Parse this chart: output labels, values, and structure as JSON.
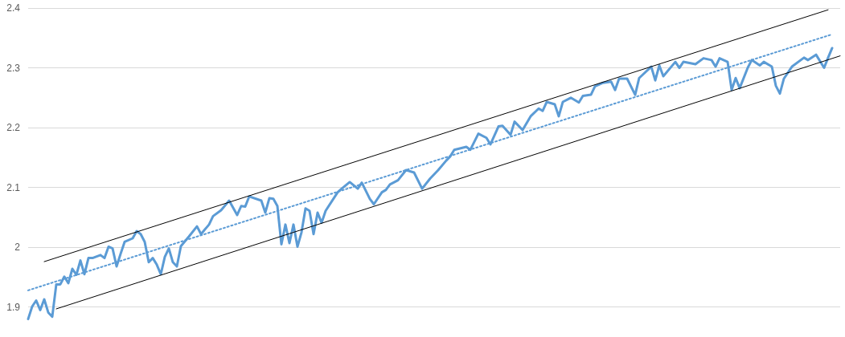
{
  "chart_data": {
    "type": "line",
    "tick_labels": "y",
    "grid": "y",
    "ylim": [
      1.85,
      2.4
    ],
    "yticks": [
      1.9,
      2,
      2.1,
      2.2,
      2.3,
      2.4
    ],
    "categories": [
      null,
      null,
      null,
      null,
      null,
      null,
      null,
      null,
      null,
      null,
      null,
      null,
      null,
      null,
      null,
      null,
      null,
      null,
      null,
      null,
      null,
      null,
      null,
      null,
      null,
      null,
      null,
      null,
      null,
      null,
      null,
      null,
      null,
      null,
      null,
      null,
      null,
      null,
      null,
      null,
      null,
      null,
      null,
      null,
      null,
      null,
      null,
      null,
      null,
      null,
      null,
      null,
      null,
      null,
      null,
      null,
      null,
      null,
      null,
      null,
      null,
      null,
      null,
      null,
      null,
      null,
      null,
      null,
      null,
      null,
      null,
      null,
      null,
      null,
      null,
      null,
      null,
      null,
      null,
      null,
      null,
      null,
      null,
      null,
      null,
      null,
      null,
      null,
      null,
      null,
      null,
      null,
      null,
      null,
      null,
      null,
      null,
      null,
      null,
      null,
      null,
      null,
      null,
      null,
      null,
      null,
      null,
      null,
      null,
      null,
      null,
      null,
      null,
      null,
      null,
      null,
      null,
      null,
      null,
      null,
      null,
      null,
      null,
      null,
      null,
      null,
      null,
      null,
      null,
      null,
      null,
      null,
      null,
      null,
      null,
      null,
      null,
      null,
      null,
      null,
      null,
      null,
      null,
      null,
      null,
      null,
      null,
      null,
      null,
      null,
      null,
      null,
      null,
      null,
      null,
      null,
      null,
      null,
      null,
      null,
      null,
      null,
      null,
      null,
      null,
      null,
      null,
      null,
      null,
      null,
      null,
      null,
      null,
      null,
      null,
      null,
      null,
      null,
      null,
      null,
      null,
      null,
      null,
      null,
      null,
      null,
      null,
      null,
      null,
      null,
      null,
      null,
      null,
      null,
      null,
      null,
      null,
      null,
      null,
      null,
      null,
      null,
      null
    ],
    "series": [
      {
        "color": "#5b9bd5",
        "line_style": "solid",
        "values": [
          1.88,
          1.901,
          1.911,
          1.895,
          1.913,
          1.891,
          1.884,
          1.938,
          1.938,
          1.951,
          1.94,
          1.964,
          1.954,
          1.978,
          1.955,
          1.982,
          1.982,
          null,
          1.987,
          1.982,
          2.001,
          1.998,
          1.968,
          1.989,
          2.009,
          null,
          2.015,
          2.027,
          2.022,
          2.009,
          1.975,
          1.982,
          1.971,
          1.955,
          1.984,
          1.998,
          1.975,
          1.968,
          2.002,
          null,
          2.018,
          null,
          2.035,
          2.022,
          null,
          2.038,
          2.052,
          null,
          2.062,
          null,
          2.078,
          null,
          2.054,
          2.069,
          2.068,
          2.085,
          null,
          null,
          2.078,
          2.058,
          2.082,
          2.081,
          2.069,
          2.005,
          2.038,
          2.007,
          2.038,
          2.001,
          2.025,
          2.065,
          2.061,
          2.022,
          2.058,
          2.041,
          2.061,
          null,
          null,
          2.092,
          2.098,
          null,
          2.109,
          null,
          2.098,
          2.108,
          null,
          2.081,
          2.072,
          null,
          2.092,
          2.096,
          2.105,
          null,
          2.112,
          null,
          2.129,
          null,
          2.125,
          null,
          2.098,
          null,
          2.115,
          null,
          2.129,
          null,
          2.145,
          2.152,
          2.163,
          null,
          null,
          2.168,
          2.163,
          null,
          2.19,
          null,
          2.183,
          2.172,
          null,
          2.202,
          2.203,
          null,
          2.188,
          2.21,
          null,
          2.196,
          null,
          2.219,
          null,
          2.232,
          2.228,
          2.243,
          null,
          2.239,
          2.219,
          2.243,
          null,
          2.25,
          null,
          2.242,
          2.253,
          null,
          2.255,
          2.269,
          null,
          2.275,
          null,
          2.277,
          2.263,
          2.282,
          null,
          2.282,
          null,
          2.255,
          2.283,
          null,
          null,
          2.302,
          2.279,
          2.304,
          2.286,
          null,
          null,
          2.31,
          2.3,
          2.31,
          null,
          null,
          2.306,
          null,
          2.316,
          null,
          2.313,
          2.302,
          2.316,
          null,
          2.31,
          2.263,
          2.283,
          2.266,
          null,
          2.3,
          2.313,
          null,
          2.304,
          2.31,
          null,
          2.302,
          2.27,
          2.257,
          2.282,
          null,
          2.302,
          null,
          null,
          2.317,
          2.313,
          null,
          2.322,
          null,
          2.3,
          2.317,
          2.333,
          null,
          null
        ]
      },
      {
        "color": "#5b9bd5",
        "line_style": "dotted",
        "values": [
          1.928,
          null,
          null,
          null,
          null,
          null,
          null,
          null,
          null,
          null,
          null,
          null,
          null,
          null,
          null,
          null,
          null,
          null,
          null,
          null,
          null,
          null,
          null,
          null,
          null,
          null,
          null,
          null,
          null,
          null,
          null,
          null,
          null,
          null,
          null,
          null,
          null,
          null,
          null,
          null,
          null,
          null,
          null,
          null,
          null,
          null,
          null,
          null,
          null,
          null,
          null,
          null,
          null,
          null,
          null,
          null,
          null,
          null,
          null,
          null,
          null,
          null,
          null,
          null,
          null,
          null,
          null,
          null,
          null,
          null,
          null,
          null,
          null,
          null,
          null,
          null,
          null,
          null,
          null,
          null,
          null,
          null,
          null,
          null,
          null,
          null,
          null,
          null,
          null,
          null,
          null,
          null,
          null,
          null,
          null,
          null,
          null,
          null,
          null,
          null,
          null,
          null,
          null,
          null,
          null,
          null,
          null,
          null,
          null,
          null,
          null,
          null,
          null,
          null,
          null,
          null,
          null,
          null,
          null,
          null,
          null,
          null,
          null,
          null,
          null,
          null,
          null,
          null,
          null,
          null,
          null,
          null,
          null,
          null,
          null,
          null,
          null,
          null,
          null,
          null,
          null,
          null,
          null,
          null,
          null,
          null,
          null,
          null,
          null,
          null,
          null,
          null,
          null,
          null,
          null,
          null,
          null,
          null,
          null,
          null,
          null,
          null,
          null,
          null,
          null,
          null,
          null,
          null,
          null,
          null,
          null,
          null,
          null,
          null,
          null,
          null,
          null,
          null,
          null,
          null,
          null,
          null,
          null,
          null,
          null,
          null,
          null,
          null,
          null,
          null,
          null,
          null,
          null,
          null,
          null,
          null,
          null,
          null,
          null,
          null,
          2.356,
          null,
          null
        ]
      },
      {
        "color": "#000000",
        "line_style": "solid",
        "values": [
          null,
          null,
          null,
          null,
          1.976,
          null,
          null,
          null,
          null,
          null,
          null,
          null,
          null,
          null,
          null,
          null,
          null,
          null,
          null,
          null,
          null,
          null,
          null,
          null,
          null,
          null,
          null,
          null,
          null,
          null,
          null,
          null,
          null,
          null,
          null,
          null,
          null,
          null,
          null,
          null,
          null,
          null,
          null,
          null,
          null,
          null,
          null,
          null,
          null,
          null,
          null,
          null,
          null,
          null,
          null,
          null,
          null,
          null,
          null,
          null,
          null,
          null,
          null,
          null,
          null,
          null,
          null,
          null,
          null,
          null,
          null,
          null,
          null,
          null,
          null,
          null,
          null,
          null,
          null,
          null,
          null,
          null,
          null,
          null,
          null,
          null,
          null,
          null,
          null,
          null,
          null,
          null,
          null,
          null,
          null,
          null,
          null,
          null,
          null,
          null,
          null,
          null,
          null,
          null,
          null,
          null,
          null,
          null,
          null,
          null,
          null,
          null,
          null,
          null,
          null,
          null,
          null,
          null,
          null,
          null,
          null,
          null,
          null,
          null,
          null,
          null,
          null,
          null,
          null,
          null,
          null,
          null,
          null,
          null,
          null,
          null,
          null,
          null,
          null,
          null,
          null,
          null,
          null,
          null,
          null,
          null,
          null,
          null,
          null,
          null,
          null,
          null,
          null,
          null,
          null,
          null,
          null,
          null,
          null,
          null,
          null,
          null,
          null,
          null,
          null,
          null,
          null,
          null,
          null,
          null,
          null,
          null,
          null,
          null,
          null,
          null,
          null,
          null,
          null,
          null,
          null,
          null,
          null,
          null,
          null,
          null,
          null,
          null,
          null,
          null,
          null,
          null,
          null,
          null,
          null,
          null,
          null,
          null,
          null,
          2.397,
          null,
          null,
          null
        ]
      },
      {
        "color": "#000000",
        "line_style": "solid",
        "values": [
          null,
          null,
          null,
          null,
          null,
          null,
          null,
          1.897,
          null,
          null,
          null,
          null,
          null,
          null,
          null,
          null,
          null,
          null,
          null,
          null,
          null,
          null,
          null,
          null,
          null,
          null,
          null,
          null,
          null,
          null,
          null,
          null,
          null,
          null,
          null,
          null,
          null,
          null,
          null,
          null,
          null,
          null,
          null,
          null,
          null,
          null,
          null,
          null,
          null,
          null,
          null,
          null,
          null,
          null,
          null,
          null,
          null,
          null,
          null,
          null,
          null,
          null,
          null,
          null,
          null,
          null,
          null,
          null,
          null,
          null,
          null,
          null,
          null,
          null,
          null,
          null,
          null,
          null,
          null,
          null,
          null,
          null,
          null,
          null,
          null,
          null,
          null,
          null,
          null,
          null,
          null,
          null,
          null,
          null,
          null,
          null,
          null,
          null,
          null,
          null,
          null,
          null,
          null,
          null,
          null,
          null,
          null,
          null,
          null,
          null,
          null,
          null,
          null,
          null,
          null,
          null,
          null,
          null,
          null,
          null,
          null,
          null,
          null,
          null,
          null,
          null,
          null,
          null,
          null,
          null,
          null,
          null,
          null,
          null,
          null,
          null,
          null,
          null,
          null,
          null,
          null,
          null,
          null,
          null,
          null,
          null,
          null,
          null,
          null,
          null,
          null,
          null,
          null,
          null,
          null,
          null,
          null,
          null,
          null,
          null,
          null,
          null,
          null,
          null,
          null,
          null,
          null,
          null,
          null,
          null,
          null,
          null,
          null,
          null,
          null,
          null,
          null,
          null,
          null,
          null,
          null,
          null,
          null,
          null,
          null,
          null,
          null,
          null,
          null,
          null,
          null,
          null,
          null,
          null,
          null,
          null,
          null,
          null,
          null,
          null,
          null,
          null,
          2.32
        ]
      }
    ]
  }
}
